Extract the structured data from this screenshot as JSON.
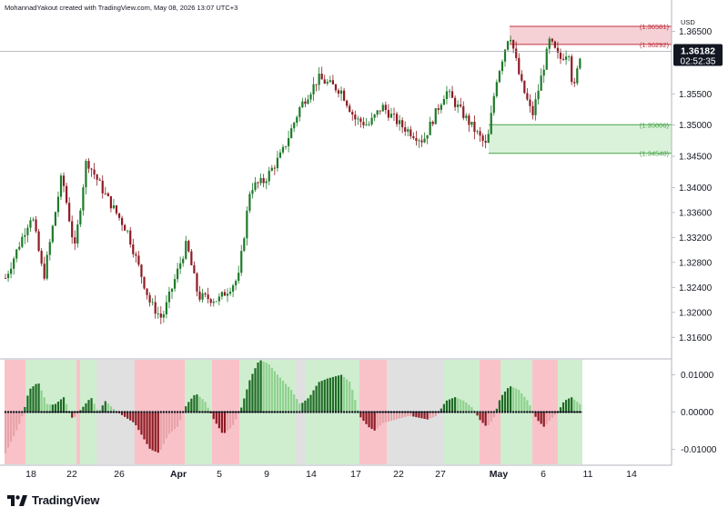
{
  "header": {
    "caption": "MohannadYakout created with TradingView.com, May 08, 2026 13:07 UTC+3"
  },
  "brand": {
    "name": "TradingView"
  },
  "colors": {
    "up": "#1e7a2a",
    "down": "#8e1b24",
    "resistance_fill": "#f3c9cf",
    "resistance_line": "#c0323f",
    "support_fill": "#d3efd3",
    "support_line": "#47a447",
    "osc_green": "#cfeecf",
    "osc_red": "#f9c2c8",
    "osc_gray": "#e0e0e0"
  },
  "chart_data": {
    "type": "candlestick",
    "symbol_currency": "USD",
    "price_axis": {
      "ticks": [
        "1.36500",
        "1.35500",
        "1.35000",
        "1.34500",
        "1.34000",
        "1.33600",
        "1.33200",
        "1.32800",
        "1.32400",
        "1.32000",
        "1.31600"
      ],
      "range": [
        1.314,
        1.368
      ]
    },
    "time_axis": {
      "labels": [
        "18",
        "22",
        "26",
        "Apr",
        "5",
        "9",
        "14",
        "17",
        "22",
        "27",
        "May",
        "6",
        "11",
        "14"
      ]
    },
    "current_price": {
      "value": "1.36182",
      "countdown": "02:52:35"
    },
    "zones": [
      {
        "name": "resistance",
        "top": 1.36581,
        "bottom": 1.36292,
        "top_label": "(1.36581)",
        "bottom_label": "(1.36292)"
      },
      {
        "name": "support",
        "top": 1.35006,
        "bottom": 1.34548,
        "top_label": "(1.35006)",
        "bottom_label": "(1.34548)"
      }
    ],
    "oscillator": {
      "ticks": [
        "0.01000",
        "0.00000",
        "-0.01000"
      ],
      "range": [
        -0.014,
        0.014
      ]
    }
  }
}
